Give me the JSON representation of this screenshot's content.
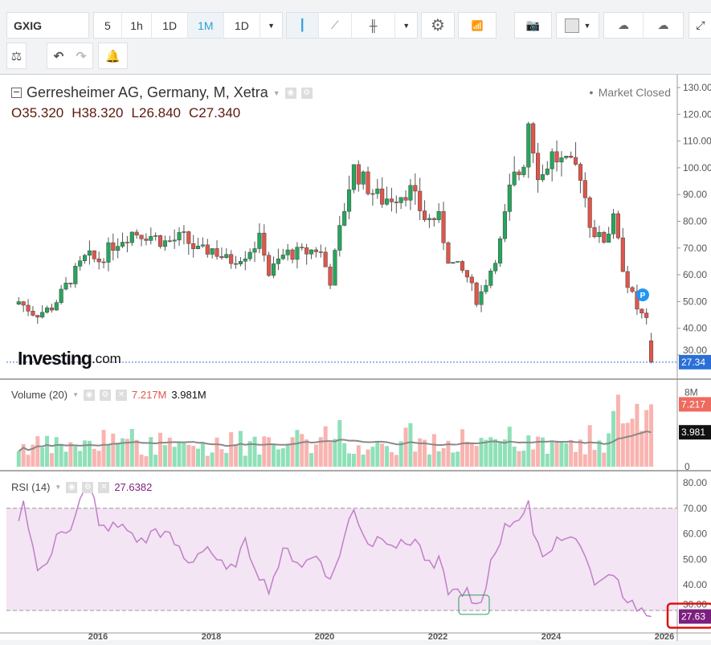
{
  "toolbar": {
    "symbol": "GXIG",
    "intervals": [
      "5",
      "1h",
      "1D",
      "1M",
      "1D"
    ],
    "active_interval": "1M",
    "icons": [
      "candlestick-icon",
      "line-chart-icon",
      "bar-chart-icon",
      "settings-icon",
      "indicators-icon",
      "camera-icon",
      "color-box-icon",
      "cloud-download-icon",
      "cloud-upload-icon"
    ]
  },
  "header": {
    "title": "Gerresheimer AG, Germany, M, Xetra",
    "market_status": "Market Closed",
    "o_label": "O",
    "o": "35.320",
    "h_label": "H",
    "h": "38.320",
    "l_label": "L",
    "l": "26.840",
    "c_label": "C",
    "c": "27.340",
    "watermark": "Investing",
    "watermark_suffix": ".com"
  },
  "volume": {
    "label": "Volume (20)",
    "value": "7.217M",
    "ma": "3.981M",
    "axis": [
      "8M",
      "0"
    ],
    "tag_value": "7.217",
    "tag_ma": "3.981"
  },
  "rsi": {
    "label": "RSI (14)",
    "value": "27.6382",
    "axis": [
      "80.00",
      "70.00",
      "60.00",
      "50.00",
      "40.00",
      "30.00"
    ],
    "tag": "27.63"
  },
  "colors": {
    "up": "#26a65b",
    "down": "#e0554a",
    "rsi": "#c17ec9",
    "rsi_tag": "#7b1f7e"
  },
  "chart_data": {
    "type": "candlestick",
    "title": "Gerresheimer AG, Germany, M, Xetra",
    "ylim": [
      25,
      132
    ],
    "y_ticks": [
      "130.00",
      "120.00",
      "110.00",
      "100.00",
      "90.00",
      "80.00",
      "70.00",
      "60.00",
      "50.00",
      "40.00",
      "30.00"
    ],
    "last_price": "27.34",
    "x_ticks": [
      "2016",
      "2018",
      "2020",
      "2022",
      "2024",
      "2026"
    ],
    "close_anchors": [
      [
        2014.6,
        50
      ],
      [
        2014.9,
        45
      ],
      [
        2015.2,
        48
      ],
      [
        2015.5,
        58
      ],
      [
        2015.8,
        67
      ],
      [
        2016.0,
        65
      ],
      [
        2016.3,
        72
      ],
      [
        2016.6,
        76
      ],
      [
        2016.9,
        75
      ],
      [
        2017.2,
        72
      ],
      [
        2017.5,
        74
      ],
      [
        2017.8,
        68
      ],
      [
        2018.0,
        70
      ],
      [
        2018.3,
        65
      ],
      [
        2018.6,
        68
      ],
      [
        2018.9,
        74
      ],
      [
        2019.0,
        60
      ],
      [
        2019.3,
        68
      ],
      [
        2019.6,
        68
      ],
      [
        2019.9,
        70
      ],
      [
        2020.1,
        58
      ],
      [
        2020.3,
        80
      ],
      [
        2020.5,
        100
      ],
      [
        2020.8,
        92
      ],
      [
        2021.0,
        88
      ],
      [
        2021.3,
        90
      ],
      [
        2021.5,
        92
      ],
      [
        2021.8,
        80
      ],
      [
        2022.0,
        82
      ],
      [
        2022.2,
        65
      ],
      [
        2022.5,
        60
      ],
      [
        2022.7,
        50
      ],
      [
        2022.9,
        60
      ],
      [
        2023.1,
        72
      ],
      [
        2023.3,
        95
      ],
      [
        2023.5,
        100
      ],
      [
        2023.6,
        118
      ],
      [
        2023.8,
        95
      ],
      [
        2024.0,
        105
      ],
      [
        2024.3,
        100
      ],
      [
        2024.5,
        100
      ],
      [
        2024.7,
        78
      ],
      [
        2024.9,
        72
      ],
      [
        2025.1,
        80
      ],
      [
        2025.3,
        60
      ],
      [
        2025.5,
        48
      ],
      [
        2025.7,
        42
      ],
      [
        2025.8,
        27.34
      ]
    ],
    "rsi_anchors": [
      [
        2014.6,
        65
      ],
      [
        2014.7,
        72
      ],
      [
        2014.9,
        48
      ],
      [
        2015.1,
        48
      ],
      [
        2015.3,
        60
      ],
      [
        2015.5,
        62
      ],
      [
        2015.7,
        76
      ],
      [
        2015.9,
        78
      ],
      [
        2016.0,
        62
      ],
      [
        2016.2,
        63
      ],
      [
        2016.5,
        62
      ],
      [
        2016.8,
        56
      ],
      [
        2017.0,
        62
      ],
      [
        2017.3,
        58
      ],
      [
        2017.6,
        48
      ],
      [
        2017.9,
        56
      ],
      [
        2018.1,
        50
      ],
      [
        2018.3,
        44
      ],
      [
        2018.6,
        56
      ],
      [
        2018.9,
        42
      ],
      [
        2019.0,
        38
      ],
      [
        2019.3,
        54
      ],
      [
        2019.6,
        48
      ],
      [
        2019.9,
        52
      ],
      [
        2020.1,
        41
      ],
      [
        2020.3,
        55
      ],
      [
        2020.5,
        70
      ],
      [
        2020.8,
        55
      ],
      [
        2021.0,
        60
      ],
      [
        2021.3,
        55
      ],
      [
        2021.6,
        58
      ],
      [
        2021.9,
        45
      ],
      [
        2022.0,
        50
      ],
      [
        2022.2,
        37
      ],
      [
        2022.5,
        38
      ],
      [
        2022.6,
        32
      ],
      [
        2022.8,
        31
      ],
      [
        2022.9,
        48
      ],
      [
        2023.2,
        63
      ],
      [
        2023.5,
        68
      ],
      [
        2023.6,
        73
      ],
      [
        2023.7,
        55
      ],
      [
        2024.0,
        52
      ],
      [
        2024.1,
        60
      ],
      [
        2024.3,
        58
      ],
      [
        2024.5,
        58
      ],
      [
        2024.7,
        43
      ],
      [
        2024.9,
        40
      ],
      [
        2025.1,
        46
      ],
      [
        2025.3,
        35
      ],
      [
        2025.5,
        32
      ],
      [
        2025.7,
        27.64
      ]
    ],
    "volume_last": 7.217,
    "volume_ma_last": 3.981,
    "ylim_volume": [
      0,
      9
    ]
  }
}
